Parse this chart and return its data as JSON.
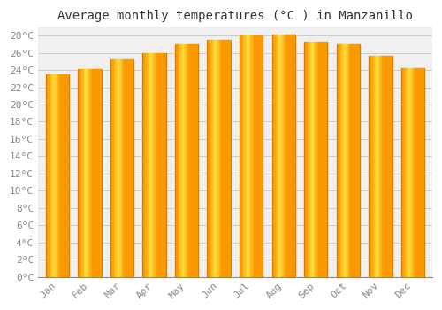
{
  "months": [
    "Jan",
    "Feb",
    "Mar",
    "Apr",
    "May",
    "Jun",
    "Jul",
    "Aug",
    "Sep",
    "Oct",
    "Nov",
    "Dec"
  ],
  "temperatures": [
    23.5,
    24.1,
    25.2,
    26.0,
    27.0,
    27.5,
    28.0,
    28.1,
    27.3,
    27.0,
    25.7,
    24.2
  ],
  "bar_color_main": "#FFA500",
  "bar_color_left": "#F5A623",
  "bar_color_center": "#FFD060",
  "bar_color_right": "#E8920A",
  "title": "Average monthly temperatures (°C ) in Manzanillo",
  "ylim": [
    0,
    29
  ],
  "ytick_max": 28,
  "ytick_step": 2,
  "background_color": "#FFFFFF",
  "plot_bg_color": "#F0F0F0",
  "grid_color": "#CCCCCC",
  "title_fontsize": 10,
  "tick_fontsize": 8,
  "title_font_color": "#333333",
  "tick_font_color": "#888888",
  "bar_width": 0.72
}
